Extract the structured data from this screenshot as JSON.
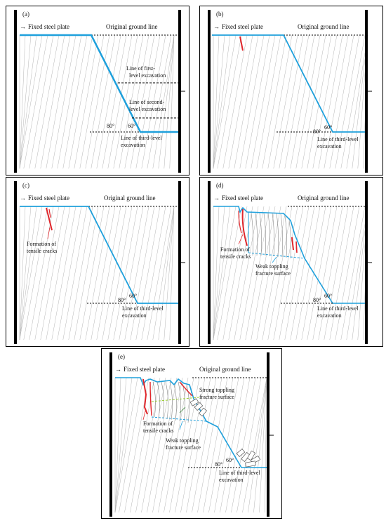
{
  "panels": [
    {
      "id": "a",
      "label": "(a)",
      "fixed_plate": "Fixed steel plate",
      "ground_line": "Original ground line",
      "line1": [
        "Line of first-",
        "level excavation"
      ],
      "line2": [
        "Line of second-",
        "level excavation"
      ],
      "line3": [
        "Line of third-level",
        "excavation"
      ],
      "angle80": "80°",
      "angle60": "60°"
    },
    {
      "id": "b",
      "label": "(b)",
      "fixed_plate": "Fixed steel plate",
      "ground_line": "Original ground line",
      "line3": [
        "Line of third-level",
        "excavation"
      ],
      "angle80": "80°",
      "angle60": "60°"
    },
    {
      "id": "c",
      "label": "(c)",
      "fixed_plate": "Fixed steel plate",
      "ground_line": "Original ground line",
      "cracks": [
        "Formation of",
        "tensile cracks"
      ],
      "line3": [
        "Line of third-level",
        "excavation"
      ],
      "angle80": "80°",
      "angle60": "60°"
    },
    {
      "id": "d",
      "label": "(d)",
      "fixed_plate": "Fixed steel plate",
      "ground_line": "Original ground line",
      "cracks": [
        "Formation of",
        "tensile cracks"
      ],
      "weak": [
        "Weak toppling",
        "fracture surface"
      ],
      "line3": [
        "Line of third-level",
        "excavation"
      ],
      "angle80": "80°",
      "angle60": "60°"
    },
    {
      "id": "e",
      "label": "(e)",
      "fixed_plate": "Fixed steel plate",
      "ground_line": "Original ground line",
      "strong": [
        "Strong toppling",
        "fracture surface"
      ],
      "cracks": [
        "Formation of",
        "tensile cracks"
      ],
      "weak": [
        "Weak toppling",
        "fracture surface"
      ],
      "line3": [
        "Line of third-level",
        "excavation"
      ],
      "angle80": "80°",
      "angle60": "60°"
    }
  ],
  "colors": {
    "slope": "#1ea0dc",
    "crack": "#e0262b",
    "strong_surface": "#9acd32",
    "joints": "#9a9a9a",
    "frame": "#000000"
  }
}
